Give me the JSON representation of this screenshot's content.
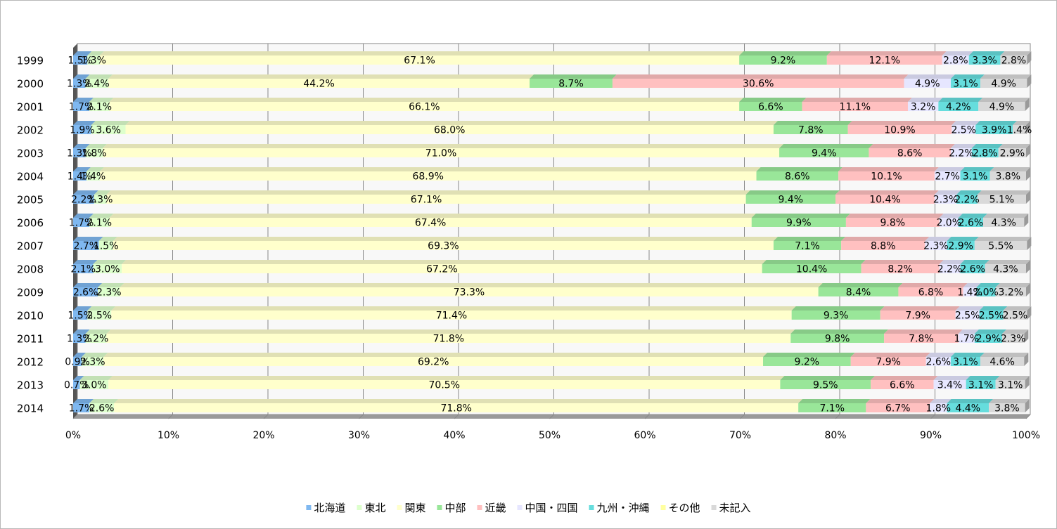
{
  "chart_data": {
    "type": "bar",
    "orientation": "horizontal",
    "stacked": "percent",
    "title": "",
    "xlabel": "",
    "ylabel": "",
    "xlim": [
      0,
      100
    ],
    "x_ticks": [
      "0%",
      "10%",
      "20%",
      "30%",
      "40%",
      "50%",
      "60%",
      "70%",
      "80%",
      "90%",
      "100%"
    ],
    "grid": true,
    "legend_position": "bottom",
    "categories": [
      "1999",
      "2000",
      "2001",
      "2002",
      "2003",
      "2004",
      "2005",
      "2006",
      "2007",
      "2008",
      "2009",
      "2010",
      "2011",
      "2012",
      "2013",
      "2014"
    ],
    "series": [
      {
        "name": "北海道",
        "color": "#7fb8f0",
        "values": [
          1.5,
          1.3,
          1.7,
          1.9,
          1.3,
          1.4,
          2.2,
          1.7,
          2.7,
          2.1,
          2.6,
          1.5,
          1.3,
          0.9,
          0.7,
          1.7
        ]
      },
      {
        "name": "東北",
        "color": "#ddffcc",
        "values": [
          1.3,
          2.4,
          2.1,
          3.6,
          1.8,
          1.4,
          1.3,
          2.1,
          1.5,
          3.0,
          2.3,
          2.5,
          2.2,
          2.3,
          3.0,
          2.6
        ]
      },
      {
        "name": "関東",
        "color": "#ffffcc",
        "values": [
          67.1,
          44.2,
          66.1,
          68.0,
          71.0,
          68.9,
          67.1,
          67.4,
          69.3,
          67.2,
          73.3,
          71.4,
          71.8,
          69.2,
          70.5,
          71.8
        ]
      },
      {
        "name": "中部",
        "color": "#99e699",
        "values": [
          9.2,
          8.7,
          6.6,
          7.8,
          9.4,
          8.6,
          9.4,
          9.9,
          7.1,
          10.4,
          8.4,
          9.3,
          9.8,
          9.2,
          9.5,
          7.1
        ]
      },
      {
        "name": "近畿",
        "color": "#ffc0c0",
        "values": [
          12.1,
          30.6,
          11.1,
          10.9,
          8.6,
          10.1,
          10.4,
          9.8,
          8.8,
          8.2,
          6.8,
          7.9,
          7.8,
          7.9,
          6.6,
          6.7
        ]
      },
      {
        "name": "中国・四国",
        "color": "#e6e6ff",
        "values": [
          2.8,
          4.9,
          3.2,
          2.5,
          2.2,
          2.7,
          2.3,
          2.0,
          2.3,
          2.2,
          1.4,
          2.5,
          1.7,
          2.6,
          3.4,
          1.8
        ]
      },
      {
        "name": "九州・沖縄",
        "color": "#66dddd",
        "values": [
          3.3,
          3.1,
          4.2,
          3.9,
          2.8,
          3.1,
          2.2,
          2.6,
          2.9,
          2.6,
          2.0,
          2.5,
          2.9,
          3.1,
          3.1,
          4.4
        ]
      },
      {
        "name": "その他",
        "color": "#ffffa0",
        "values": [
          0,
          0,
          0,
          0,
          0,
          0,
          0,
          0,
          0,
          0,
          0,
          0,
          0,
          0,
          0,
          0
        ]
      },
      {
        "name": "未記入",
        "color": "#d9d9d9",
        "values": [
          2.8,
          4.9,
          4.9,
          1.4,
          2.9,
          3.8,
          5.1,
          4.3,
          5.5,
          4.3,
          3.2,
          2.5,
          2.3,
          4.6,
          3.1,
          3.8
        ]
      }
    ],
    "data_labels": [
      [
        "1.5%",
        "1.3%",
        "67.1%",
        "9.2%",
        "12.1%",
        "2.8%",
        "3.3%",
        "",
        "2.8%"
      ],
      [
        "1.3%",
        "2.4%",
        "44.2%",
        "8.7%",
        "30.6%",
        "4.9%",
        "3.1%",
        "",
        "4.9%"
      ],
      [
        "1.7%",
        "2.1%",
        "66.1%",
        "6.6%",
        "11.1%",
        "3.2%",
        "4.2%",
        "",
        "4.9%"
      ],
      [
        "1.9%",
        "3.6%",
        "68.0%",
        "7.8%",
        "10.9%",
        "2.5%",
        "3.9%",
        "",
        "1.4%"
      ],
      [
        "1.3%",
        "1.8%",
        "71.0%",
        "9.4%",
        "8.6%",
        "2.2%",
        "2.8%",
        "",
        "2.9%"
      ],
      [
        "1.4%",
        "1.4%",
        "68.9%",
        "8.6%",
        "10.1%",
        "2.7%",
        "3.1%",
        "",
        "3.8%"
      ],
      [
        "2.2%",
        "1.3%",
        "67.1%",
        "9.4%",
        "10.4%",
        "2.3%",
        "2.2%",
        "",
        "5.1%"
      ],
      [
        "1.7%",
        "2.1%",
        "67.4%",
        "9.9%",
        "9.8%",
        "2.0%",
        "2.6%",
        "",
        "4.3%"
      ],
      [
        "2.7%",
        "1.5%",
        "69.3%",
        "7.1%",
        "8.8%",
        "2.3%",
        "2.9%",
        "",
        "5.5%"
      ],
      [
        "2.1%",
        "3.0%",
        "67.2%",
        "10.4%",
        "8.2%",
        "2.2%",
        "2.6%",
        "",
        "4.3%"
      ],
      [
        "2.6%",
        "2.3%",
        "73.3%",
        "8.4%",
        "6.8%",
        "1.4%",
        "2.0%",
        "",
        "3.2%"
      ],
      [
        "1.5%",
        "2.5%",
        "71.4%",
        "9.3%",
        "7.9%",
        "2.5%",
        "2.5%",
        "",
        "2.5%"
      ],
      [
        "1.3%",
        "2.2%",
        "71.8%",
        "9.8%",
        "7.8%",
        "1.7%",
        "2.9%",
        "",
        "2.3%"
      ],
      [
        "0.9%",
        "2.3%",
        "69.2%",
        "9.2%",
        "7.9%",
        "2.6%",
        "3.1%",
        "",
        "4.6%"
      ],
      [
        "0.7%",
        "3.0%",
        "70.5%",
        "9.5%",
        "6.6%",
        "3.4%",
        "3.1%",
        "",
        "3.1%"
      ],
      [
        "1.7%",
        "2.6%",
        "71.8%",
        "7.1%",
        "6.7%",
        "1.8%",
        "4.4%",
        "",
        "3.8%"
      ]
    ]
  }
}
